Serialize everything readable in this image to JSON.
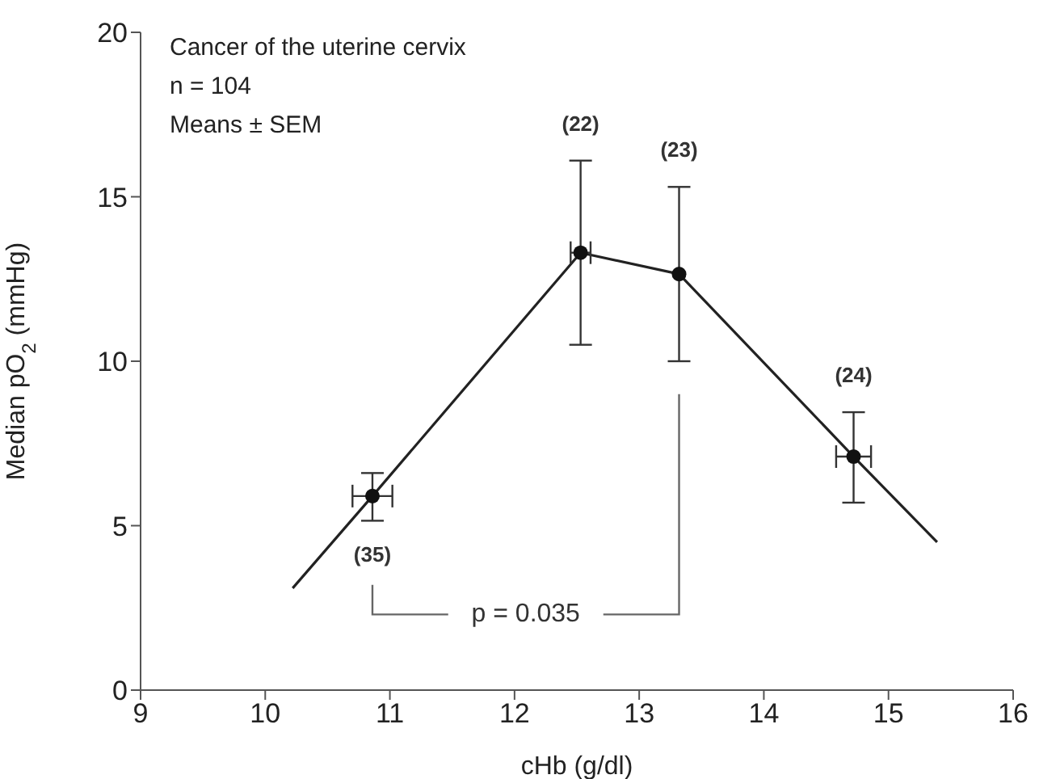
{
  "chart_data": {
    "type": "scatter",
    "xlabel": "cHb (g/dl)",
    "ylabel": "Median pO$_{2}$ (mmHg)",
    "xlim": [
      9,
      16
    ],
    "xticks": [
      9,
      10,
      11,
      12,
      13,
      14,
      15,
      16
    ],
    "ylim": [
      0,
      20
    ],
    "yticks": [
      0,
      5,
      10,
      15,
      20
    ],
    "grid": false,
    "legend": false,
    "series": [
      {
        "type": "line",
        "color": "#222222",
        "x": [
          10.22,
          10.86,
          12.53,
          13.32,
          14.72,
          15.39
        ],
        "values": [
          3.1,
          5.9,
          13.3,
          12.65,
          7.1,
          4.5
        ],
        "marker": "none",
        "line_style": "solid"
      },
      {
        "type": "scatter",
        "color": "#111111",
        "x": [
          10.86,
          12.53,
          13.32,
          14.72
        ],
        "values": [
          5.9,
          13.3,
          12.65,
          7.1
        ],
        "errors": [
          [
            5.15,
            6.6
          ],
          [
            10.5,
            16.1
          ],
          [
            10.0,
            15.3
          ],
          [
            5.7,
            8.45
          ]
        ],
        "xerrors": [
          0.16,
          0.08,
          null,
          0.14
        ],
        "marker": "circle"
      }
    ],
    "annotations": [
      "Cancer of the uterine cervix",
      "n = 104",
      "Means ± SEM",
      "(35)",
      "(22)",
      "(23)",
      "(24)",
      "p = 0.035"
    ]
  }
}
